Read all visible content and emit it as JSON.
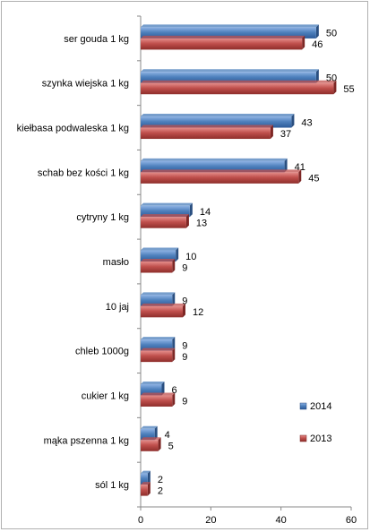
{
  "chart_data": {
    "type": "bar",
    "orientation": "horizontal",
    "categories": [
      "ser gouda 1 kg",
      "szynka wiejska 1 kg",
      "kiełbasa podwaleska 1 kg",
      "schab bez kości 1 kg",
      "cytryny 1 kg",
      "masło",
      "10 jaj",
      "chleb 1000g",
      "cukier 1 kg",
      "mąka pszenna 1 kg",
      "sól 1 kg"
    ],
    "series": [
      {
        "name": "2014",
        "color": "#4a7ebb",
        "values": [
          50,
          50,
          43,
          41,
          14,
          10,
          9,
          9,
          6,
          4,
          2
        ]
      },
      {
        "name": "2013",
        "color": "#c0504d",
        "values": [
          46,
          55,
          37,
          45,
          13,
          9,
          12,
          9,
          9,
          5,
          2
        ]
      }
    ],
    "xlim": [
      0,
      60
    ],
    "xticks": [
      "0",
      "20",
      "40",
      "60"
    ],
    "grid": false,
    "legend_position": "bottom-right",
    "data_labels": true
  }
}
